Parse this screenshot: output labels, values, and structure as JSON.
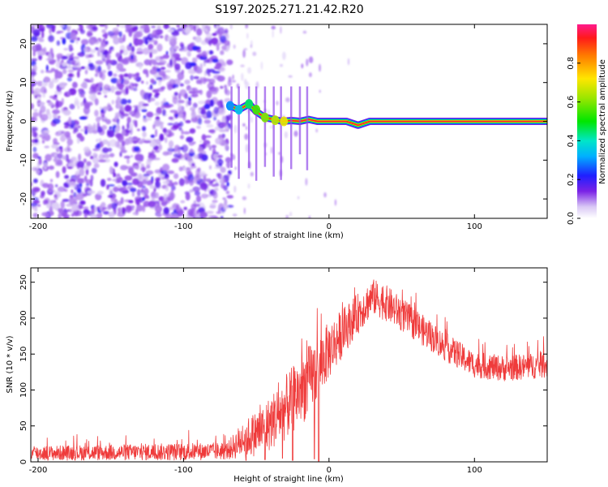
{
  "title": "S197.2025.271.21.42.R20",
  "chart_data": [
    {
      "type": "heatmap",
      "xlabel": "Height of straight line (km)",
      "ylabel": "Frequency (Hz)",
      "xlim": [
        -205,
        150
      ],
      "ylim": [
        -25,
        25
      ],
      "xticks": [
        -200,
        -100,
        0,
        100
      ],
      "yticks": [
        -20,
        -10,
        0,
        10,
        20
      ],
      "noise_region_x": [
        -205,
        -68
      ],
      "carrier": [
        {
          "x": -68,
          "f": 4.0,
          "amp": 0.35
        },
        {
          "x": -62,
          "f": 3.0,
          "amp": 0.45
        },
        {
          "x": -55,
          "f": 4.5,
          "amp": 0.4
        },
        {
          "x": -50,
          "f": 2.5,
          "amp": 0.5
        },
        {
          "x": -44,
          "f": 1.0,
          "amp": 0.55
        },
        {
          "x": -38,
          "f": 0.5,
          "amp": 0.6
        },
        {
          "x": -32,
          "f": 0.0,
          "amp": 0.7
        },
        {
          "x": -26,
          "f": 0.2,
          "amp": 0.65
        },
        {
          "x": -20,
          "f": 0.0,
          "amp": 0.7
        },
        {
          "x": -14,
          "f": 0.5,
          "amp": 0.8
        },
        {
          "x": -8,
          "f": 0.0,
          "amp": 0.85
        },
        {
          "x": 0,
          "f": 0.0,
          "amp": 0.9
        },
        {
          "x": 12,
          "f": 0.0,
          "amp": 0.95
        },
        {
          "x": 20,
          "f": -1.0,
          "amp": 0.95
        },
        {
          "x": 28,
          "f": 0.0,
          "amp": 1.0
        },
        {
          "x": 150,
          "f": 0.0,
          "amp": 1.0
        }
      ]
    },
    {
      "type": "colorbar",
      "label": "Normalized spectral amplitude",
      "ylim": [
        0,
        1
      ],
      "ticks": [
        "0.0",
        "0.2",
        "0.4",
        "0.6",
        "0.8"
      ],
      "tick_values": [
        0.0,
        0.2,
        0.4,
        0.6,
        0.8
      ]
    },
    {
      "type": "line",
      "color": "#ef3b3b",
      "xlabel": "Height of straight line (km)",
      "ylabel": "SNR (10 * v/v)",
      "xlim": [
        -205,
        150
      ],
      "ylim": [
        0,
        270
      ],
      "xticks": [
        -200,
        -100,
        0,
        100
      ],
      "yticks": [
        0,
        50,
        100,
        150,
        200,
        250
      ],
      "envelope": [
        {
          "x": -205,
          "mean": 12,
          "spread": 10
        },
        {
          "x": -150,
          "mean": 13,
          "spread": 11
        },
        {
          "x": -100,
          "mean": 14,
          "spread": 12
        },
        {
          "x": -70,
          "mean": 15,
          "spread": 12
        },
        {
          "x": -60,
          "mean": 30,
          "spread": 25
        },
        {
          "x": -45,
          "mean": 45,
          "spread": 35
        },
        {
          "x": -30,
          "mean": 75,
          "spread": 45
        },
        {
          "x": -15,
          "mean": 110,
          "spread": 50
        },
        {
          "x": 0,
          "mean": 155,
          "spread": 40
        },
        {
          "x": 15,
          "mean": 195,
          "spread": 30
        },
        {
          "x": 30,
          "mean": 230,
          "spread": 25
        },
        {
          "x": 40,
          "mean": 220,
          "spread": 25
        },
        {
          "x": 60,
          "mean": 190,
          "spread": 22
        },
        {
          "x": 80,
          "mean": 160,
          "spread": 20
        },
        {
          "x": 100,
          "mean": 135,
          "spread": 18
        },
        {
          "x": 120,
          "mean": 130,
          "spread": 18
        },
        {
          "x": 150,
          "mean": 135,
          "spread": 18
        }
      ],
      "dropouts": [
        {
          "x": -57,
          "y": 2
        },
        {
          "x": -44,
          "y": 3
        },
        {
          "x": -32,
          "y": 5
        },
        {
          "x": -25,
          "y": 2
        },
        {
          "x": -10,
          "y": 4
        },
        {
          "x": -7,
          "y": 1
        }
      ]
    }
  ]
}
